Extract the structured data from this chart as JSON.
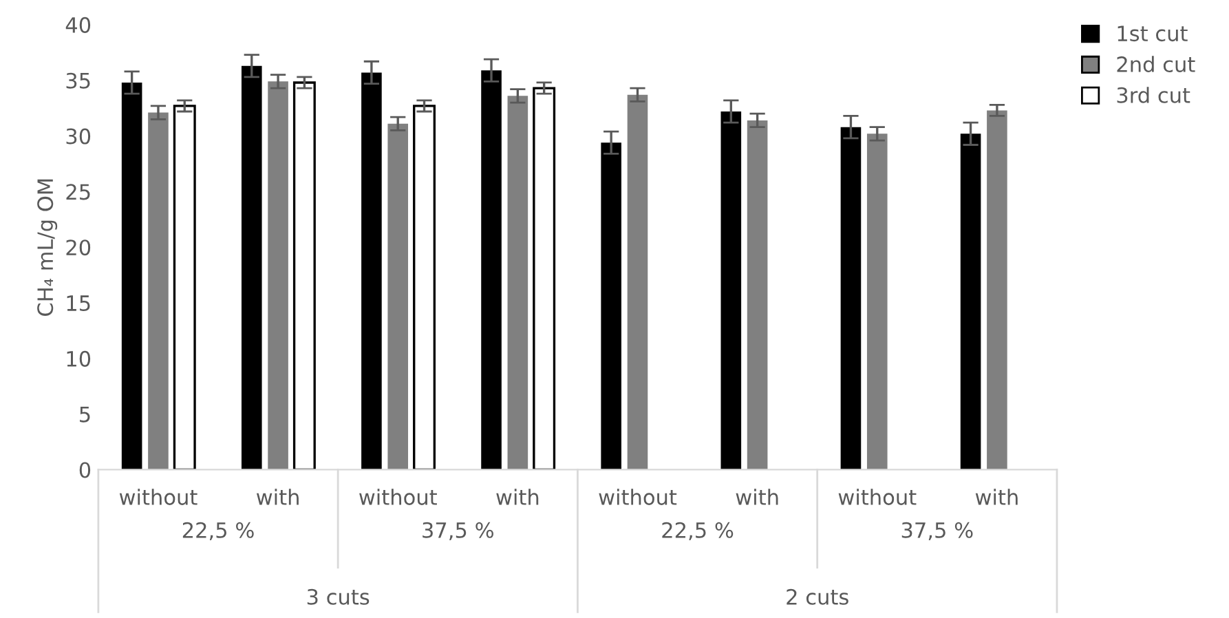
{
  "chart_data": {
    "type": "bar",
    "ylabel": "CH₄ mL/g OM",
    "categories": [
      "without",
      "with",
      "without",
      "with",
      "without",
      "with",
      "without",
      "with"
    ],
    "series": [
      {
        "name": "1st cut",
        "color": "#000000",
        "values": [
          34.8,
          36.3,
          35.7,
          35.9,
          29.4,
          32.2,
          30.8,
          30.2
        ],
        "errors": [
          1.0,
          1.0,
          1.0,
          1.0,
          1.0,
          1.0,
          1.0,
          1.0
        ]
      },
      {
        "name": "2nd cut",
        "color": "#808080",
        "values": [
          32.1,
          34.9,
          31.1,
          33.6,
          33.7,
          31.4,
          30.2,
          32.3
        ],
        "errors": [
          0.6,
          0.6,
          0.6,
          0.6,
          0.6,
          0.6,
          0.6,
          0.5
        ]
      },
      {
        "name": "3rd cut",
        "color": "#ffffff",
        "values": [
          32.7,
          34.8,
          32.7,
          34.3,
          null,
          null,
          null,
          null
        ],
        "errors": [
          0.5,
          0.5,
          0.5,
          0.5,
          null,
          null,
          null,
          null
        ]
      }
    ],
    "annotations": [
      "22,5 %",
      "37,5 %",
      "22,5 %",
      "37,5 %",
      "3 cuts",
      "2 cuts"
    ],
    "ylim": [
      0,
      40
    ],
    "yticks": [
      0,
      5,
      10,
      15,
      20,
      25,
      30,
      35,
      40
    ],
    "grid": false,
    "legend": "top right"
  }
}
